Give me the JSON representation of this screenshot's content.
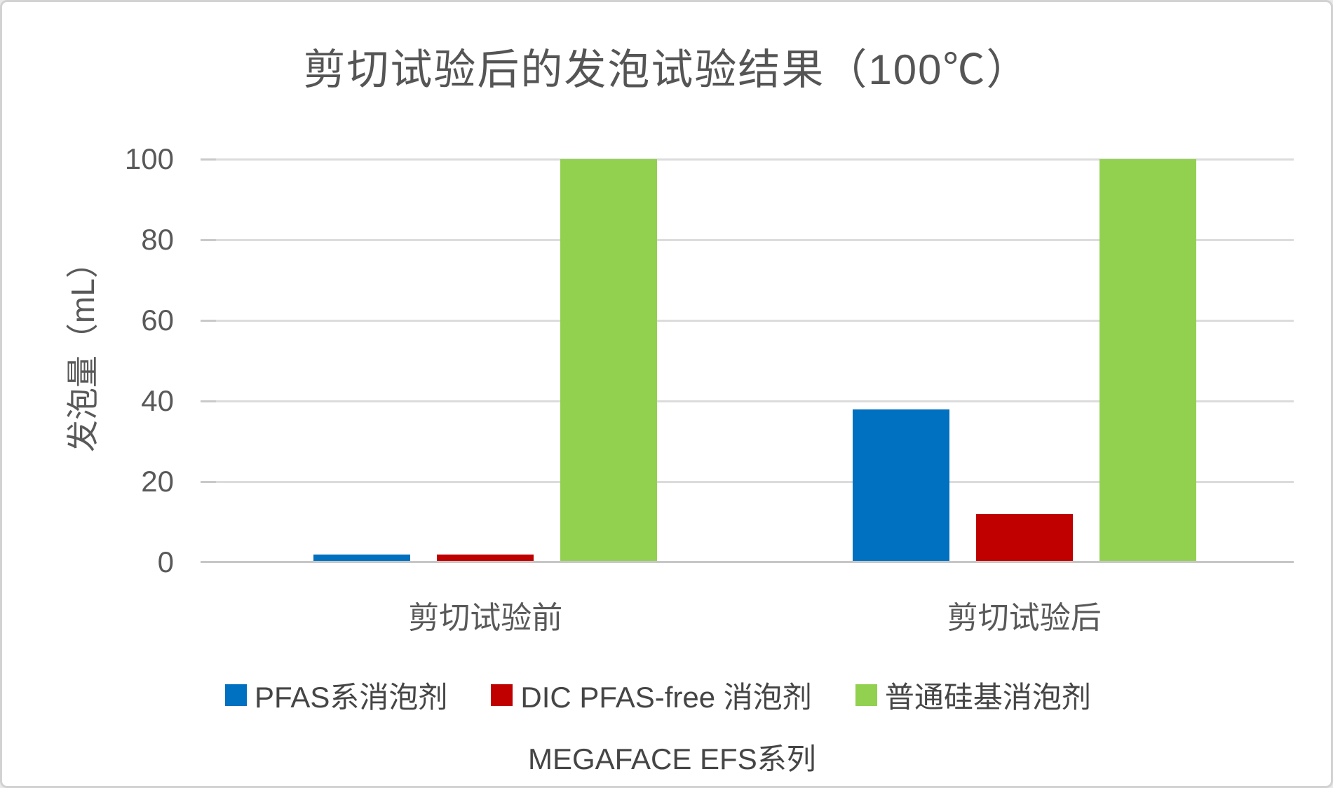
{
  "chart_data": {
    "type": "bar",
    "title": "剪切试验后的发泡试验结果（100℃）",
    "ylabel": "发泡量（mL）",
    "xlabel": "",
    "categories": [
      "剪切试验前",
      "剪切试验后"
    ],
    "series": [
      {
        "name": "PFAS系消泡剂",
        "color": "#0070C0",
        "values": [
          2,
          38
        ]
      },
      {
        "name": "DIC PFAS-free 消泡剂",
        "color": "#C00000",
        "values": [
          2,
          12
        ]
      },
      {
        "name": "普通硅基消泡剂",
        "color": "#92D050",
        "values": [
          100,
          100
        ]
      }
    ],
    "ylim": [
      0,
      100
    ],
    "yticks": [
      0,
      20,
      40,
      60,
      80,
      100
    ],
    "grid": true,
    "legend_position": "bottom",
    "legend_note": "MEGAFACE EFS系列"
  },
  "colors": {
    "gridline": "#DCDCDC",
    "axis": "#C6C6C6",
    "text": "#595959",
    "frame_border": "#D2D2D2",
    "background": "#FFFFFF"
  }
}
